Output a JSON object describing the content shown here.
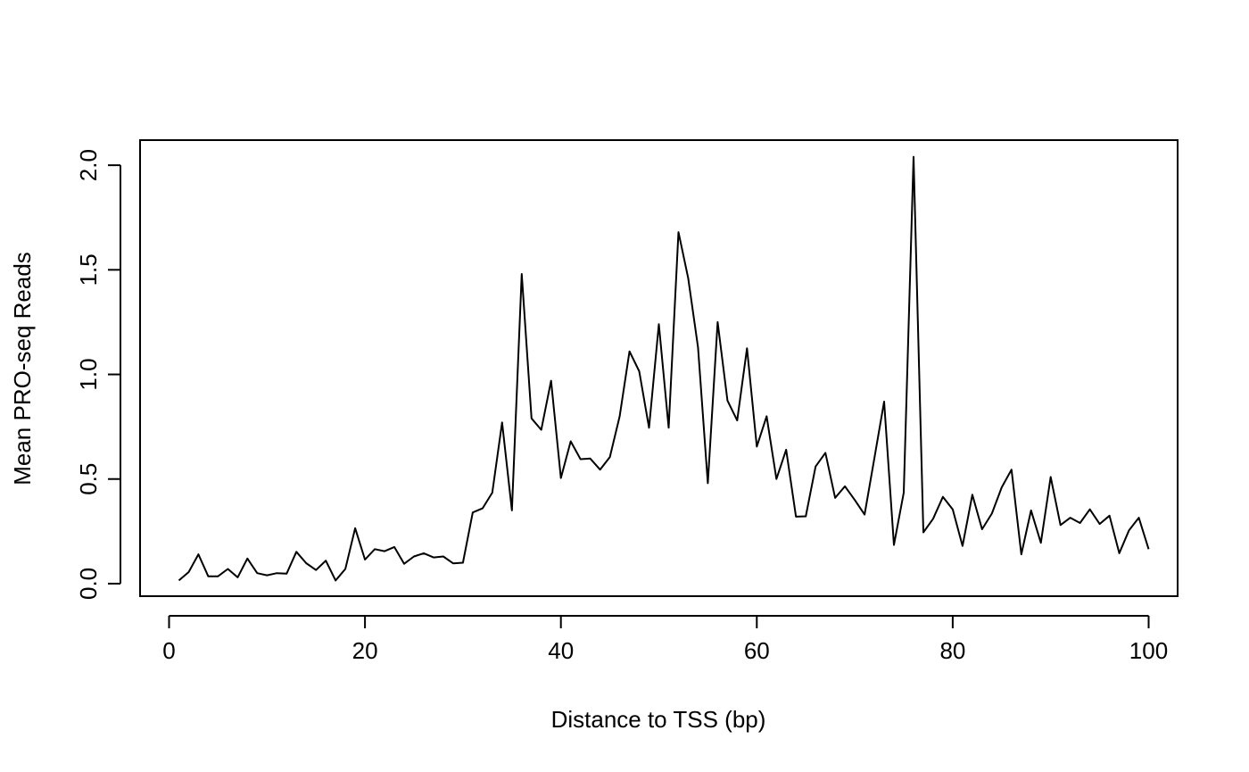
{
  "chart_data": {
    "type": "line",
    "title": "",
    "xlabel": "Distance to TSS (bp)",
    "ylabel": "Mean PRO-seq Reads",
    "xlim": [
      -2.96,
      102.96
    ],
    "ylim": [
      -0.06,
      2.12
    ],
    "xticks": [
      0,
      20,
      40,
      60,
      80,
      100
    ],
    "xtick_labels": [
      "0",
      "20",
      "40",
      "60",
      "80",
      "100"
    ],
    "yticks": [
      0.0,
      0.5,
      1.0,
      1.5,
      2.0
    ],
    "ytick_labels": [
      "0.0",
      "0.5",
      "1.0",
      "1.5",
      "2.0"
    ],
    "grid": false,
    "legend": "none",
    "line_color": "#000000",
    "series": [
      {
        "x": [
          1,
          2,
          3,
          4,
          5,
          6,
          7,
          8,
          9,
          10,
          11,
          12,
          13,
          14,
          15,
          16,
          17,
          18,
          19,
          20,
          21,
          22,
          23,
          24,
          25,
          26,
          27,
          28,
          29,
          30,
          31,
          32,
          33,
          34,
          35,
          36,
          37,
          38,
          39,
          40,
          41,
          42,
          43,
          44,
          45,
          46,
          47,
          48,
          49,
          50,
          51,
          52,
          53,
          54,
          55,
          56,
          57,
          58,
          59,
          60,
          61,
          62,
          63,
          64,
          65,
          66,
          67,
          68,
          69,
          70,
          71,
          72,
          73,
          74,
          75,
          76,
          77,
          78,
          79,
          80,
          81,
          82,
          83,
          84,
          85,
          86,
          87,
          88,
          89,
          90,
          91,
          92,
          93,
          94,
          95,
          96,
          97,
          98,
          99,
          100
        ],
        "values": [
          0.015,
          0.055,
          0.14,
          0.035,
          0.035,
          0.07,
          0.03,
          0.12,
          0.05,
          0.04,
          0.05,
          0.048,
          0.152,
          0.098,
          0.065,
          0.11,
          0.015,
          0.07,
          0.265,
          0.115,
          0.165,
          0.155,
          0.175,
          0.095,
          0.13,
          0.145,
          0.125,
          0.13,
          0.097,
          0.1,
          0.34,
          0.36,
          0.435,
          0.77,
          0.35,
          1.48,
          0.79,
          0.735,
          0.97,
          0.505,
          0.68,
          0.595,
          0.598,
          0.545,
          0.605,
          0.8,
          1.11,
          1.015,
          0.745,
          1.24,
          0.745,
          1.68,
          1.46,
          1.13,
          0.48,
          1.25,
          0.875,
          0.78,
          1.125,
          0.655,
          0.8,
          0.5,
          0.64,
          0.32,
          0.322,
          0.56,
          0.625,
          0.41,
          0.465,
          0.4,
          0.33,
          0.6,
          0.87,
          0.185,
          0.435,
          2.04,
          0.245,
          0.31,
          0.415,
          0.355,
          0.18,
          0.425,
          0.26,
          0.335,
          0.46,
          0.545,
          0.14,
          0.35,
          0.195,
          0.51,
          0.28,
          0.315,
          0.29,
          0.355,
          0.285,
          0.325,
          0.145,
          0.255,
          0.315,
          0.165
        ]
      }
    ]
  }
}
